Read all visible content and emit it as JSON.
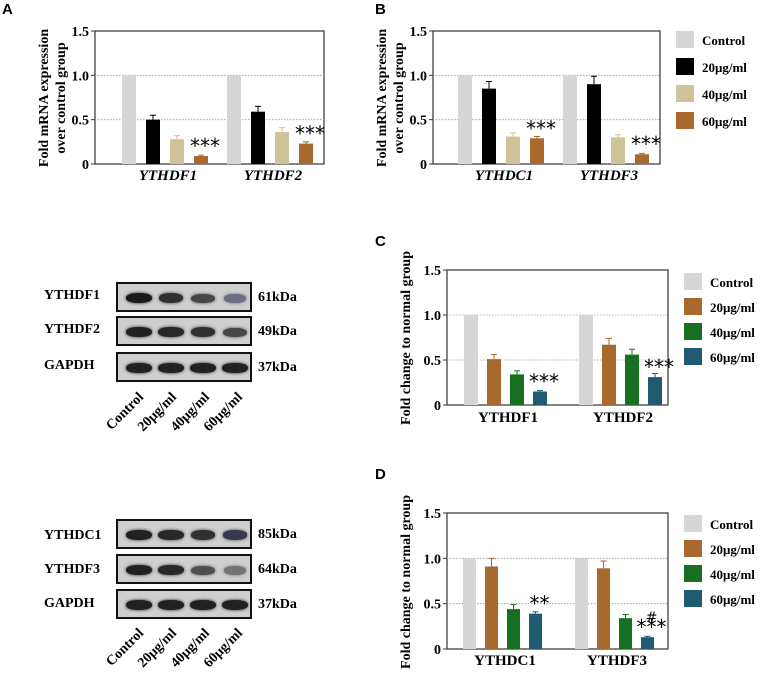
{
  "colors": {
    "control": "#d6d6d6",
    "dark": "#000000",
    "tan": "#cfc39a",
    "brown": "#a8692e",
    "green": "#17701f",
    "teal": "#1f5a70",
    "grid": "#9a9a9a"
  },
  "chart_data": [
    {
      "panel": "A",
      "type": "bar",
      "categories": [
        "YTHDF1",
        "YTHDF2"
      ],
      "category_style": "italic",
      "ylabel": "Fold mRNA expression over control group",
      "ylim": [
        0,
        1.5
      ],
      "yticks": [
        "0",
        "0.5",
        "1.0",
        "1.5"
      ],
      "series": [
        {
          "name": "Control",
          "color_key": "control",
          "values": [
            1.0,
            1.0
          ],
          "errors": [
            0,
            0
          ]
        },
        {
          "name": "20μg/ml",
          "color_key": "dark",
          "values": [
            0.5,
            0.59
          ],
          "errors": [
            0.05,
            0.06
          ]
        },
        {
          "name": "40μg/ml",
          "color_key": "tan",
          "values": [
            0.28,
            0.36
          ],
          "errors": [
            0.04,
            0.05
          ]
        },
        {
          "name": "60μg/ml",
          "color_key": "brown",
          "values": [
            0.09,
            0.23
          ],
          "errors": [
            0.01,
            0.02
          ]
        }
      ],
      "annotations": [
        [
          "",
          "",
          "",
          "***"
        ],
        [
          "",
          "",
          "",
          "***"
        ]
      ]
    },
    {
      "panel": "B",
      "type": "bar",
      "categories": [
        "YTHDC1",
        "YTHDF3"
      ],
      "category_style": "italic",
      "ylabel": "Fold mRNA expression over control group",
      "ylim": [
        0,
        1.5
      ],
      "yticks": [
        "0",
        "0.5",
        "1.0",
        "1.5"
      ],
      "series": [
        {
          "name": "Control",
          "color_key": "control",
          "values": [
            1.0,
            1.0
          ],
          "errors": [
            0,
            0
          ]
        },
        {
          "name": "20μg/ml",
          "color_key": "dark",
          "values": [
            0.85,
            0.9
          ],
          "errors": [
            0.08,
            0.09
          ]
        },
        {
          "name": "40μg/ml",
          "color_key": "tan",
          "values": [
            0.31,
            0.3
          ],
          "errors": [
            0.04,
            0.03
          ]
        },
        {
          "name": "60μg/ml",
          "color_key": "brown",
          "values": [
            0.29,
            0.11
          ],
          "errors": [
            0.02,
            0.01
          ]
        }
      ],
      "annotations": [
        [
          "",
          "",
          "",
          "***"
        ],
        [
          "",
          "",
          "",
          "***"
        ]
      ]
    },
    {
      "panel": "C",
      "type": "bar",
      "categories": [
        "YTHDF1",
        "YTHDF2"
      ],
      "category_style": "bold",
      "ylabel": "Fold change to normal group",
      "ylim": [
        0,
        1.5
      ],
      "yticks": [
        "0",
        "0.5",
        "1.0",
        "1.5"
      ],
      "series": [
        {
          "name": "Control",
          "color_key": "control",
          "values": [
            1.0,
            1.0
          ],
          "errors": [
            0,
            0
          ]
        },
        {
          "name": "20μg/ml",
          "color_key": "brown",
          "values": [
            0.51,
            0.67
          ],
          "errors": [
            0.05,
            0.07
          ]
        },
        {
          "name": "40μg/ml",
          "color_key": "green",
          "values": [
            0.34,
            0.56
          ],
          "errors": [
            0.04,
            0.06
          ]
        },
        {
          "name": "60μg/ml",
          "color_key": "teal",
          "values": [
            0.15,
            0.31
          ],
          "errors": [
            0.01,
            0.04
          ]
        }
      ],
      "annotations": [
        [
          "",
          "",
          "",
          "***"
        ],
        [
          "",
          "",
          "",
          "***"
        ]
      ]
    },
    {
      "panel": "D",
      "type": "bar",
      "categories": [
        "YTHDC1",
        "YTHDF3"
      ],
      "category_style": "bold",
      "ylabel": "Fold change to normal group",
      "ylim": [
        0,
        1.5
      ],
      "yticks": [
        "0",
        "0.5",
        "1.0",
        "1.5"
      ],
      "series": [
        {
          "name": "Control",
          "color_key": "control",
          "values": [
            1.0,
            1.0
          ],
          "errors": [
            0,
            0
          ]
        },
        {
          "name": "20μg/ml",
          "color_key": "brown",
          "values": [
            0.91,
            0.89
          ],
          "errors": [
            0.09,
            0.08
          ]
        },
        {
          "name": "40μg/ml",
          "color_key": "green",
          "values": [
            0.44,
            0.34
          ],
          "errors": [
            0.05,
            0.04
          ]
        },
        {
          "name": "60μg/ml",
          "color_key": "teal",
          "values": [
            0.39,
            0.13
          ],
          "errors": [
            0.02,
            0.01
          ]
        }
      ],
      "annotations": [
        [
          "",
          "",
          "",
          "**"
        ],
        [
          "",
          "",
          "",
          "***"
        ]
      ],
      "extra_annotations": [
        [
          "",
          "",
          "",
          ""
        ],
        [
          "",
          "",
          "",
          "#"
        ]
      ]
    }
  ],
  "blots": [
    {
      "rows": [
        {
          "label": "YTHDF1",
          "kda": "61kDa",
          "intensity": [
            1.0,
            0.85,
            0.7,
            0.45
          ]
        },
        {
          "label": "YTHDF2",
          "kda": "49kDa",
          "intensity": [
            0.95,
            0.9,
            0.85,
            0.7
          ]
        },
        {
          "label": "GAPDH",
          "kda": "37kDa",
          "intensity": [
            0.95,
            0.95,
            0.95,
            0.95
          ]
        }
      ],
      "lanes": [
        "Control",
        "20μg/ml",
        "40μg/ml",
        "60μg/ml"
      ]
    },
    {
      "rows": [
        {
          "label": "YTHDC1",
          "kda": "85kDa",
          "intensity": [
            0.95,
            0.9,
            0.85,
            0.8
          ]
        },
        {
          "label": "YTHDF3",
          "kda": "64kDa",
          "intensity": [
            0.95,
            0.9,
            0.65,
            0.4
          ]
        },
        {
          "label": "GAPDH",
          "kda": "37kDa",
          "intensity": [
            0.95,
            0.95,
            0.95,
            0.95
          ]
        }
      ],
      "lanes": [
        "Control",
        "20μg/ml",
        "40μg/ml",
        "60μg/ml"
      ]
    }
  ]
}
